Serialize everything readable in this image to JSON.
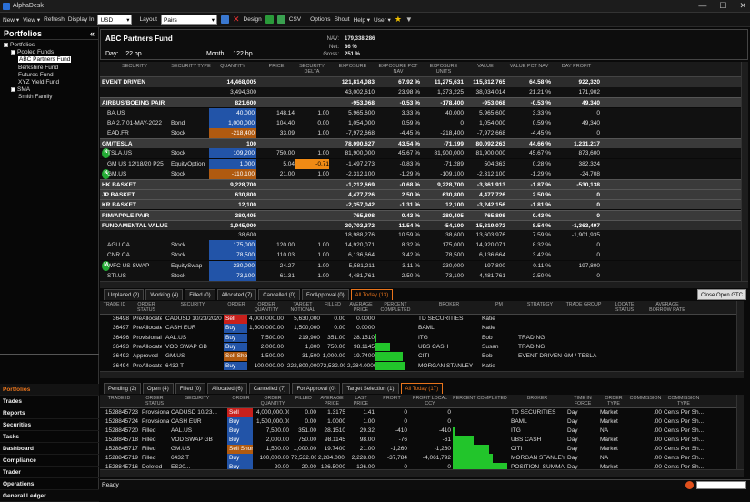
{
  "app": {
    "title": "AlphaDesk",
    "win": [
      "—",
      "☐",
      "✕"
    ]
  },
  "menu": {
    "new": "New",
    "view": "View",
    "refresh": "Refresh",
    "display_in": "Display In",
    "currency": "USD",
    "layout": "Layout",
    "layout_value": "Pairs",
    "design": "Design",
    "csv": "CSV",
    "options": "Options",
    "shout": "Shout",
    "help": "Help",
    "user": "User"
  },
  "left": {
    "title": "Portfolios",
    "collapse": "«",
    "tree": [
      {
        "label": "Portfolios",
        "lvl": 0,
        "box": true
      },
      {
        "label": "Pooled Funds",
        "lvl": 1,
        "box": true
      },
      {
        "label": "ABC Partners Fund",
        "lvl": 2,
        "sel": true
      },
      {
        "label": "Berkshire Fund",
        "lvl": 2
      },
      {
        "label": "Futures Fund",
        "lvl": 2
      },
      {
        "label": "XYZ Yield Fund",
        "lvl": 2
      },
      {
        "label": "SMA",
        "lvl": 1,
        "box": true
      },
      {
        "label": "Smith Family",
        "lvl": 2
      }
    ],
    "nav": [
      "Portfolios",
      "Trades",
      "Reports",
      "Securities",
      "Tasks",
      "Dashboard",
      "Compliance",
      "Trader",
      "Operations",
      "General Ledger"
    ]
  },
  "fund": {
    "name": "ABC Partners Fund",
    "day_label": "Day:",
    "day": "22 bp",
    "month_label": "Month:",
    "month": "122 bp",
    "nav_label": "NAV:",
    "nav": "179,338,286",
    "net_label": "Net:",
    "net": "86 %",
    "gross_label": "Gross:",
    "gross": "251 %"
  },
  "grid": {
    "headers": [
      "SECURITY",
      "SECURITY TYPE",
      "QUANTITY",
      "PRICE",
      "SECURITY DELTA",
      "EXPOSURE",
      "EXPOSURE PCT NAV",
      "EXPOSURE UNITS",
      "VALUE",
      "VALUE PCT NAV",
      "DAY PROFIT"
    ],
    "rows": [
      {
        "k": "lvl0",
        "c": [
          "EVENT DRIVEN",
          "",
          "14,468,005",
          "",
          "",
          "121,814,083",
          "67.92 %",
          "11,275,631",
          "115,812,765",
          "64.58 %",
          "922,320"
        ]
      },
      {
        "k": "sub",
        "c": [
          "",
          "",
          "3,494,300",
          "",
          "",
          "43,002,610",
          "23.98 %",
          "1,373,225",
          "38,034,014",
          "21.21 %",
          "171,902"
        ]
      },
      {
        "k": "grp",
        "c": [
          "AIRBUS/BOEING PAIR",
          "",
          "821,600",
          "",
          "",
          "-953,068",
          "-0.53 %",
          "-178,400",
          "-953,068",
          "-0.53 %",
          "49,340"
        ]
      },
      {
        "k": "sub",
        "c": [
          "BA.US",
          "",
          "40,000",
          "148.14",
          "1.00",
          "5,965,600",
          "3.33 %",
          "40,000",
          "5,965,600",
          "3.33 %",
          "0"
        ],
        "bar": "blue"
      },
      {
        "k": "sub",
        "c": [
          "BA 2.7 01-MAY-2022",
          "Bond",
          "1,000,000",
          "104.40",
          "0.00",
          "1,054,000",
          "0.59 %",
          "0",
          "1,054,000",
          "0.59 %",
          "49,340"
        ],
        "bar": "blue"
      },
      {
        "k": "sub",
        "c": [
          "EAD.FR",
          "Stock",
          "-218,400",
          "33.09",
          "1.00",
          "-7,972,668",
          "-4.45 %",
          "-218,400",
          "-7,972,668",
          "-4.45 %",
          "0"
        ],
        "bar": "orange"
      },
      {
        "k": "grp",
        "c": [
          "GM/TESLA",
          "",
          "100",
          "",
          "",
          "78,090,627",
          "43.54 %",
          "-71,199",
          "80,092,263",
          "44.66 %",
          "1,231,217"
        ]
      },
      {
        "k": "sub",
        "c": [
          "TSLA.US",
          "Stock",
          "109,200",
          "750.00",
          "1.00",
          "81,900,000",
          "45.67 %",
          "81,900,000",
          "81,900,000",
          "45.67 %",
          "873,600"
        ],
        "bar": "blue",
        "badge": "N"
      },
      {
        "k": "sub",
        "c": [
          "GM US 12/18/20 P25",
          "EquityOption",
          "1,000",
          "5.04",
          "-0.71",
          "-1,497,273",
          "-0.83 %",
          "-71,289",
          "504,363",
          "0.28 %",
          "382,324"
        ],
        "bar": "blue",
        "delta": true
      },
      {
        "k": "sub",
        "c": [
          "GM.US",
          "Stock",
          "-110,100",
          "21.00",
          "1.00",
          "-2,312,100",
          "-1.29 %",
          "-109,100",
          "-2,312,100",
          "-1.29 %",
          "-24,708"
        ],
        "bar": "orange",
        "badge": "N"
      },
      {
        "k": "grp",
        "c": [
          "HK BASKET",
          "",
          "9,228,700",
          "",
          "",
          "-1,212,669",
          "-0.68 %",
          "9,228,700",
          "-3,361,913",
          "-1.87 %",
          "-530,138"
        ]
      },
      {
        "k": "grp",
        "c": [
          "JP BASKET",
          "",
          "630,800",
          "",
          "",
          "4,477,726",
          "2.50 %",
          "630,800",
          "4,477,726",
          "2.50 %",
          "0"
        ]
      },
      {
        "k": "grp",
        "c": [
          "KR BASKET",
          "",
          "12,100",
          "",
          "",
          "-2,357,042",
          "-1.31 %",
          "12,100",
          "-3,242,156",
          "-1.81 %",
          "0"
        ]
      },
      {
        "k": "grp",
        "c": [
          "RIM/APPLE PAIR",
          "",
          "280,405",
          "",
          "",
          "765,898",
          "0.43 %",
          "280,405",
          "765,898",
          "0.43 %",
          "0"
        ]
      },
      {
        "k": "lvl0",
        "c": [
          "FUNDAMENTAL VALUE",
          "",
          "1,945,900",
          "",
          "",
          "20,703,372",
          "11.54 %",
          "-54,100",
          "15,319,072",
          "8.54 %",
          "-1,363,497"
        ]
      },
      {
        "k": "sub",
        "c": [
          "",
          "",
          "38,600",
          "",
          "",
          "18,988,276",
          "10.59 %",
          "38,600",
          "13,603,976",
          "7.59 %",
          "-1,901,935"
        ]
      },
      {
        "k": "sub",
        "c": [
          "AGU.CA",
          "Stock",
          "175,000",
          "120.00",
          "1.00",
          "14,920,071",
          "8.32 %",
          "175,000",
          "14,920,071",
          "8.32 %",
          "0"
        ],
        "bar": "blue"
      },
      {
        "k": "sub",
        "c": [
          "CNR.CA",
          "Stock",
          "78,500",
          "110.03",
          "1.00",
          "6,136,664",
          "3.42 %",
          "78,500",
          "6,136,664",
          "3.42 %",
          "0"
        ],
        "bar": "blue"
      },
      {
        "k": "sub",
        "c": [
          "WFC US SWAP",
          "EquitySwap",
          "230,000",
          "24.27",
          "1.00",
          "5,581,211",
          "3.11 %",
          "230,000",
          "197,800",
          "0.11 %",
          "197,800"
        ],
        "bar": "blue",
        "badge": "M"
      },
      {
        "k": "sub",
        "c": [
          "STI.US",
          "Stock",
          "73,100",
          "61.31",
          "1.00",
          "4,481,761",
          "2.50 %",
          "73,100",
          "4,481,761",
          "2.50 %",
          "0"
        ],
        "bar": "blue"
      }
    ]
  },
  "ordtabs": [
    "Unplaced (2)",
    "Working (4)",
    "Filled (0)",
    "Allocated (7)",
    "Cancelled (0)",
    "ForApproval (0)",
    "All Today (13)"
  ],
  "close_open": "Close Open GTC",
  "orders": {
    "headers": [
      "TRADE ID",
      "ORDER STATUS",
      "SECURITY",
      "ORDER",
      "ORDER QUANTITY",
      "TARGET NOTIONAL",
      "FILLED",
      "AVERAGE PRICE",
      "PERCENT COMPLETED",
      "BROKER",
      "PM",
      "STRATEGY",
      "TRADE GROUP",
      "LOCATE STATUS",
      "AVERAGE BORROW RATE"
    ],
    "rows": [
      [
        "36498",
        "PreAllocated",
        "CADUSD 10/23/2020",
        "Sell",
        "4,000,000.00",
        "5,630,000",
        "0.00",
        "0.0000",
        "0",
        "TD SECURITIES",
        "Katie",
        "",
        "",
        "",
        ""
      ],
      [
        "36497",
        "PreAllocated",
        "CASH EUR",
        "Buy",
        "1,500,000.00",
        "1,500,000",
        "0.00",
        "0.0000",
        "0",
        "BAML",
        "Katie",
        "",
        "",
        "",
        ""
      ],
      [
        "36496",
        "Provisional",
        "AAL.US",
        "Buy",
        "7,500.00",
        "219,900",
        "351.00",
        "28.1510",
        "5",
        "ITG",
        "Bob",
        "TRADING",
        "",
        "",
        ""
      ],
      [
        "36493",
        "PreAllocated",
        "VOD SWAP GB",
        "Buy",
        "2,000.00",
        "1,800",
        "750.00",
        "98.1145",
        "38",
        "UBS CASH",
        "Susan",
        "TRADING",
        "",
        "",
        ""
      ],
      [
        "36492",
        "Approved",
        "GM.US",
        "Sell Short",
        "1,500.00",
        "31,500",
        "1,000.00",
        "19.7400",
        "67",
        "CITI",
        "Bob",
        "EVENT DRIVEN",
        "GM / TESLA",
        "",
        ""
      ],
      [
        "36494",
        "PreAllocated",
        "6432 T",
        "Buy",
        "100,000.00",
        "222,800,000",
        "72,532.00",
        "2,284.0000",
        "73",
        "MORGAN STANLEY",
        "Katie",
        "",
        "",
        "",
        ""
      ]
    ]
  },
  "exectabs": [
    "Pending (2)",
    "Open (4)",
    "Filled (0)",
    "Allocated (6)",
    "Cancelled (7)",
    "For Approval (0)",
    "Target Selection (1)",
    "All Today (17)"
  ],
  "execs": {
    "headers": [
      "TRADE ID",
      "ORDER STATUS",
      "SECURITY",
      "ORDER",
      "ORDER QUANTITY",
      "FILLED",
      "AVERAGE PRICE",
      "LAST PRICE",
      "PROFIT",
      "PROFIT LOCAL CCY",
      "PERCENT COMPLETED",
      "BROKER",
      "TIME IN FORCE",
      "ORDER TYPE",
      "COMMISSION",
      "COMMISSION TYPE"
    ],
    "rows": [
      [
        "1528845723",
        "Provisional",
        "CADUSD 10/23...",
        "Sell",
        "4,000,000.00",
        "0.00",
        "1.3175",
        "1.41",
        "0",
        "0",
        "0",
        "TD SECURITIES",
        "Day",
        "Market",
        ".00",
        "Cents Per Sh..."
      ],
      [
        "1528845724",
        "Provisional",
        "CASH EUR",
        "Buy",
        "1,500,000.00",
        "0.00",
        "1.0000",
        "1.00",
        "0",
        "0",
        "0",
        "BAML",
        "Day",
        "Market",
        ".00",
        "Cents Per Sh..."
      ],
      [
        "1528845720",
        "Filled",
        "AAL.US",
        "Buy",
        "7,500.00",
        "351.00",
        "28.1510",
        "29.32",
        "-410",
        "-410",
        "5",
        "ITG",
        "Day",
        "NA",
        ".00",
        "Cents Per Sh..."
      ],
      [
        "1528845718",
        "Filled",
        "VOD SWAP GB",
        "Buy",
        "2,000.00",
        "750.00",
        "98.1145",
        "98.00",
        "-76",
        "-61",
        "38",
        "UBS CASH",
        "Day",
        "Market",
        ".00",
        "Cents Per Sh..."
      ],
      [
        "1528845717",
        "Filled",
        "GM.US",
        "Sell Short",
        "1,500.00",
        "1,000.00",
        "19.7400",
        "21.00",
        "-1,260",
        "-1,260",
        "67",
        "CITI",
        "Day",
        "Market",
        ".00",
        "Cents Per Sh..."
      ],
      [
        "1528845719",
        "Filled",
        "6432 T",
        "Buy",
        "100,000.00",
        "72,532.00",
        "2,284.0000",
        "2,228.00",
        "-37,784",
        "-4,061,792",
        "73",
        "MORGAN STANLEY",
        "Day",
        "NA",
        ".00",
        "Cents Per Sh..."
      ],
      [
        "1528845716",
        "Deleted",
        "ES20...",
        "Buy",
        "20.00",
        "20.00",
        "126.5000",
        "126.00",
        "0",
        "0",
        "100",
        "POSITION_SUMMA...",
        "Day",
        "Market",
        ".00",
        "Cents Per Sh..."
      ]
    ]
  },
  "status": "Ready"
}
